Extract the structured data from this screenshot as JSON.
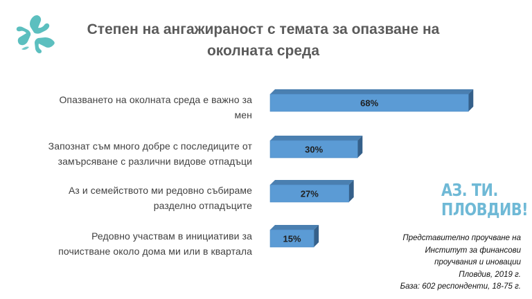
{
  "title_line1": "Степен на ангажираност с темата за опазване на",
  "title_line2": "околната среда",
  "logo_icon": "hands-triangle-logo-icon",
  "brand_line1": "АЗ. ТИ.",
  "brand_line2": "ПЛОВДИВ!",
  "colors": {
    "bar_front": "#5b9bd5",
    "bar_top": "#4a7fb0",
    "bar_side": "#35608a",
    "logo": "#5cbfbf",
    "brand": "#6fb9d6"
  },
  "chart_data": {
    "type": "bar",
    "orientation": "horizontal",
    "style": "3d",
    "categories": [
      [
        "Опазването на околната среда е важно за",
        "мен"
      ],
      [
        "Запознат съм много добре с последиците от",
        "замърсяване с различни видове отпадъци"
      ],
      [
        "Аз и семейството ми редовно събираме",
        "разделно отпадъците"
      ],
      [
        "Редовно участвам в инициативи за",
        "почистване около дома ми или в квартала"
      ]
    ],
    "values": [
      68,
      30,
      27,
      15
    ],
    "data_labels": [
      "68%",
      "30%",
      "27%",
      "15%"
    ],
    "unit": "%",
    "xlim": [
      0,
      100
    ],
    "grid": false,
    "legend": "none"
  },
  "footnote": [
    "Представително проучване на",
    "Институт за финансови",
    "проучвания и иновации",
    "Пловдив, 2019 г.",
    "База: 602 респонденти, 18-75 г."
  ]
}
